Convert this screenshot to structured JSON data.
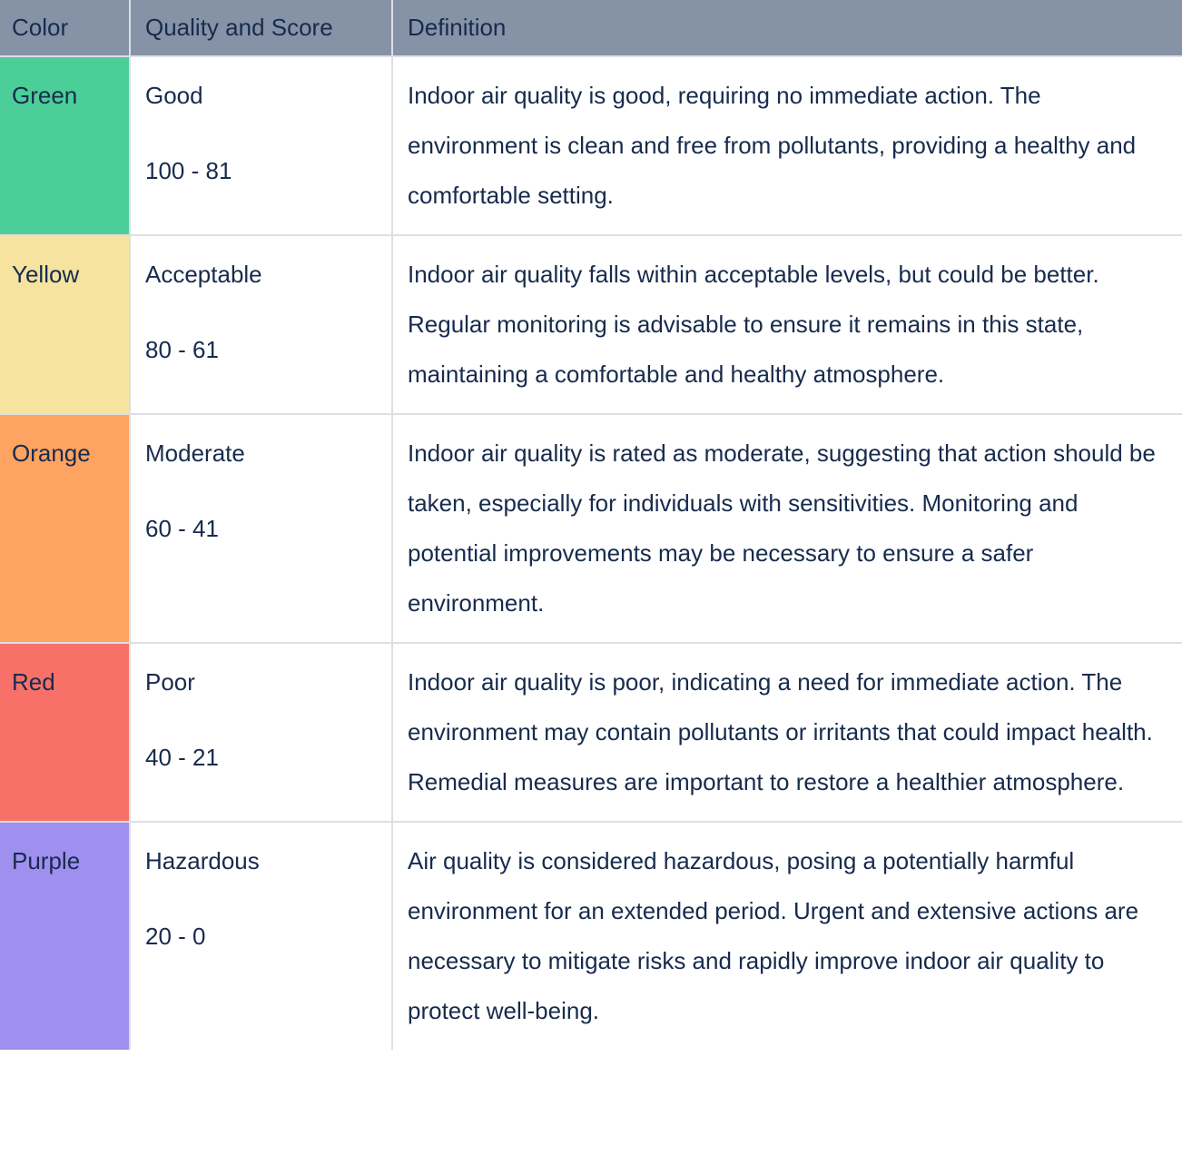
{
  "table": {
    "header": {
      "columns": [
        "Color",
        "Quality and Score",
        "Definition"
      ]
    },
    "rows": [
      {
        "color_name": "Green",
        "color_hex": "#4BCE97",
        "quality": "Good",
        "score": "100 - 81",
        "definition": "Indoor air quality is good, requiring no immediate action. The environment is clean and free from pollutants, providing a healthy and comfortable setting."
      },
      {
        "color_name": "Yellow",
        "color_hex": "#F5E39F",
        "quality": "Acceptable",
        "score": "80 - 61",
        "definition": "Indoor air quality falls within acceptable levels, but could be better. Regular monitoring is advisable to ensure it remains in this state, maintaining a comfortable and healthy atmosphere."
      },
      {
        "color_name": "Orange",
        "color_hex": "#FEA362",
        "quality": "Moderate",
        "score": "60 - 41",
        "definition": "Indoor air quality is rated as moderate, suggesting that action should be taken, especially for individuals with sensitivities. Monitoring and potential improvements may be necessary to ensure a safer environment."
      },
      {
        "color_name": "Red",
        "color_hex": "#F87168",
        "quality": "Poor",
        "score": "40 - 21",
        "definition": "Indoor air quality is poor, indicating a need for immediate action. The environment may contain pollutants or irritants that could impact health. Remedial measures are important to restore a healthier atmosphere."
      },
      {
        "color_name": "Purple",
        "color_hex": "#9F8FEF",
        "quality": "Hazardous",
        "score": "20 - 0",
        "definition": "Air quality is considered hazardous, posing a potentially harmful environment for an extended period. Urgent and extensive actions are necessary to mitigate risks and rapidly improve indoor air quality to protect well-being."
      }
    ],
    "colors": {
      "header_bg": "#8692A6",
      "text": "#172B4D",
      "border": "#DCDFE4"
    }
  }
}
